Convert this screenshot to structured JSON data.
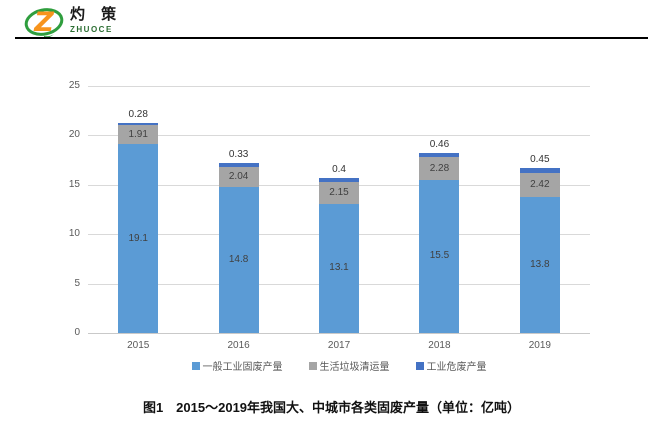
{
  "header": {
    "logo": {
      "brand_cn": "灼 策",
      "brand_en": "ZHUOCE",
      "icon": "logo-z-ellipse-icon",
      "colors": {
        "ellipse_green": "#2f9e3e",
        "z_orange": "#f7941d"
      }
    }
  },
  "chart_data": {
    "type": "bar",
    "stacked": true,
    "title": "",
    "xlabel": "",
    "ylabel": "",
    "categories": [
      "2015",
      "2016",
      "2017",
      "2018",
      "2019"
    ],
    "series": [
      {
        "name": "一般工业固废产量",
        "color": "#5b9bd5",
        "values": [
          19.1,
          14.8,
          13.1,
          15.5,
          13.8
        ],
        "labels": [
          "19.1",
          "14.8",
          "13.1",
          "15.5",
          "13.8"
        ]
      },
      {
        "name": "生活垃圾清运量",
        "color": "#a5a5a5",
        "values": [
          1.91,
          2.04,
          2.15,
          2.28,
          2.42
        ],
        "labels": [
          "1.91",
          "2.04",
          "2.15",
          "2.28",
          "2.42"
        ]
      },
      {
        "name": "工业危废产量",
        "color": "#4472c4",
        "values": [
          0.28,
          0.33,
          0.4,
          0.46,
          0.45
        ],
        "labels": [
          "0.28",
          "0.33",
          "0.4",
          "0.46",
          "0.45"
        ]
      }
    ],
    "ylim": [
      0,
      25
    ],
    "ytick_interval": 5,
    "yticks": [
      "0",
      "5",
      "10",
      "15",
      "20",
      "25"
    ],
    "grid": true,
    "legend_position": "bottom",
    "value_labels_visible": true
  },
  "caption": "图1　2015～2019年我国大、中城市各类固废产量（单位：亿吨）"
}
